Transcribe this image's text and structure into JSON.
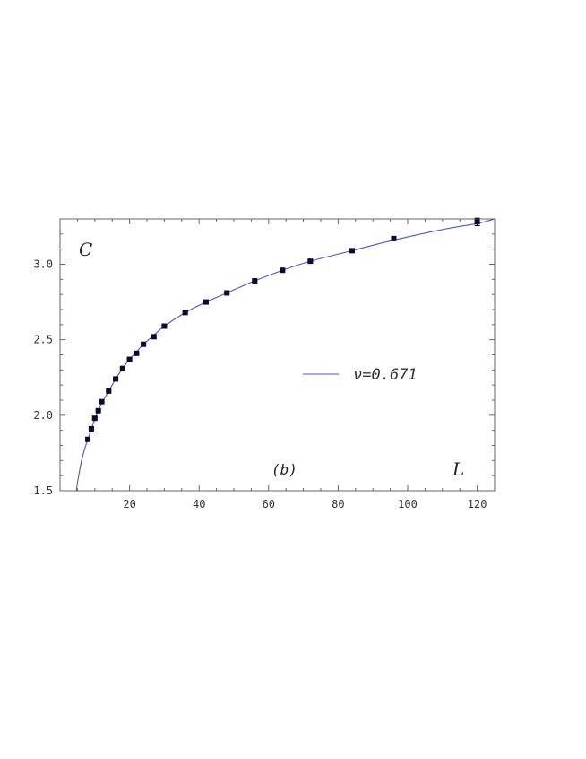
{
  "chart_data": {
    "type": "scatter",
    "ylabel": "C",
    "xlabel": "L",
    "annotation": "(b)",
    "xlim": [
      0,
      125
    ],
    "ylim": [
      1.5,
      3.3
    ],
    "x_ticks": [
      20,
      40,
      60,
      80,
      100,
      120
    ],
    "y_ticks": [
      1.5,
      2.0,
      2.5,
      3.0
    ],
    "x_tick_labels": [
      "20",
      "40",
      "60",
      "80",
      "100",
      "120"
    ],
    "y_tick_labels": [
      "1.5",
      "2.0",
      "2.5",
      "3.0"
    ],
    "grid": false,
    "legend": {
      "position": "center-right",
      "entry": "ν=0.671"
    },
    "colors": {
      "fit_line": "#4a56d8",
      "points": "#0a0a2a",
      "frame": "#666666"
    },
    "series": [
      {
        "kind": "points",
        "x": [
          8,
          9,
          10,
          11,
          12,
          14,
          16,
          18,
          20,
          22,
          24,
          27,
          30,
          36,
          42,
          48,
          56,
          64,
          72,
          84,
          96,
          120
        ],
        "y": [
          1.84,
          1.91,
          1.98,
          2.03,
          2.09,
          2.16,
          2.24,
          2.31,
          2.37,
          2.41,
          2.47,
          2.52,
          2.59,
          2.68,
          2.75,
          2.81,
          2.89,
          2.96,
          3.02,
          3.09,
          3.17,
          3.28
        ],
        "yerr": [
          0.005,
          0.005,
          0.005,
          0.005,
          0.005,
          0.005,
          0.005,
          0.005,
          0.005,
          0.005,
          0.005,
          0.005,
          0.005,
          0.005,
          0.005,
          0.005,
          0.005,
          0.005,
          0.005,
          0.01,
          0.012,
          0.025
        ]
      },
      {
        "kind": "fit",
        "x": [
          4.7,
          5,
          6,
          7,
          8,
          9,
          10,
          11,
          12,
          14,
          16,
          18,
          20,
          22,
          24,
          27,
          30,
          36,
          42,
          48,
          56,
          64,
          72,
          84,
          96,
          110,
          120,
          125
        ],
        "y": [
          1.5,
          1.55,
          1.68,
          1.77,
          1.84,
          1.91,
          1.97,
          2.03,
          2.08,
          2.16,
          2.24,
          2.31,
          2.37,
          2.42,
          2.47,
          2.53,
          2.59,
          2.68,
          2.75,
          2.81,
          2.89,
          2.96,
          3.02,
          3.09,
          3.16,
          3.23,
          3.27,
          3.3
        ]
      }
    ]
  }
}
